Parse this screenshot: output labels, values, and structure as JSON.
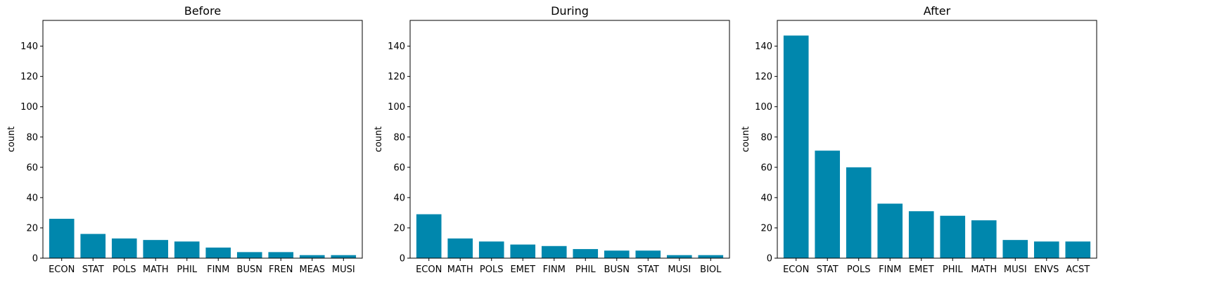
{
  "chart_data": [
    {
      "type": "bar",
      "title": "Before",
      "xlabel": "",
      "ylabel": "count",
      "ylim": [
        0,
        157
      ],
      "yticks": [
        0,
        20,
        40,
        60,
        80,
        100,
        120,
        140
      ],
      "categories": [
        "ECON",
        "STAT",
        "POLS",
        "MATH",
        "PHIL",
        "FINM",
        "BUSN",
        "FREN",
        "MEAS",
        "MUSI"
      ],
      "values": [
        26,
        16,
        13,
        12,
        11,
        7,
        4,
        4,
        2,
        2
      ],
      "bar_color": "#0087ad",
      "grid": false
    },
    {
      "type": "bar",
      "title": "During",
      "xlabel": "",
      "ylabel": "count",
      "ylim": [
        0,
        157
      ],
      "yticks": [
        0,
        20,
        40,
        60,
        80,
        100,
        120,
        140
      ],
      "categories": [
        "ECON",
        "MATH",
        "POLS",
        "EMET",
        "FINM",
        "PHIL",
        "BUSN",
        "STAT",
        "MUSI",
        "BIOL"
      ],
      "values": [
        29,
        13,
        11,
        9,
        8,
        6,
        5,
        5,
        2,
        2
      ],
      "bar_color": "#0087ad",
      "grid": false
    },
    {
      "type": "bar",
      "title": "After",
      "xlabel": "",
      "ylabel": "count",
      "ylim": [
        0,
        157
      ],
      "yticks": [
        0,
        20,
        40,
        60,
        80,
        100,
        120,
        140
      ],
      "categories": [
        "ECON",
        "STAT",
        "POLS",
        "FINM",
        "EMET",
        "PHIL",
        "MATH",
        "MUSI",
        "ENVS",
        "ACST"
      ],
      "values": [
        147,
        71,
        60,
        36,
        31,
        28,
        25,
        12,
        11,
        11
      ],
      "bar_color": "#0087ad",
      "grid": false
    }
  ]
}
